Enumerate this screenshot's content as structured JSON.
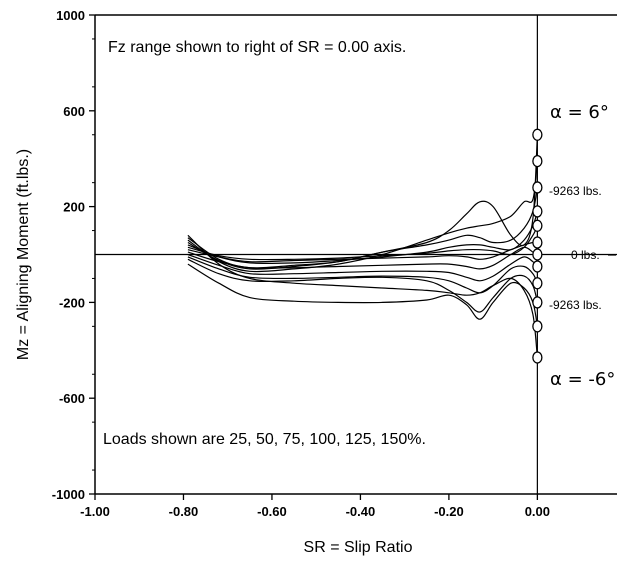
{
  "chart_data": {
    "type": "line",
    "title": "",
    "xlabel": "SR = Slip Ratio",
    "ylabel": "Mz = Aligning Moment (ft.lbs.)",
    "xlim": [
      -1.0,
      0.18
    ],
    "ylim": [
      -1000,
      1000
    ],
    "x_ticks": [
      -1.0,
      -0.8,
      -0.6,
      -0.4,
      -0.2,
      0.0
    ],
    "x_tick_labels": [
      "-1.00",
      "-0.80",
      "-0.60",
      "-0.40",
      "-0.20",
      "0.00"
    ],
    "y_ticks": [
      -1000,
      -600,
      -200,
      200,
      600,
      1000
    ],
    "y_tick_labels": [
      "-1000",
      "-600",
      "-200",
      "200",
      "600",
      "1000"
    ],
    "grid": false,
    "reference_lines": {
      "y": 0,
      "x": 0.0
    },
    "annotations": {
      "fz_range": "Fz range shown to right of SR = 0.00 axis.",
      "loads": "Loads shown are 25, 50, 75, 100, 125, 150%.",
      "alpha_pos": "α = 6°",
      "alpha_neg": "α = -6°",
      "load_pos": "-9263 lbs.",
      "load_zero": "0 lbs.",
      "load_neg": "-9263 lbs."
    },
    "markers_at_zero": [
      500,
      390,
      280,
      180,
      120,
      50,
      0,
      -50,
      -120,
      -200,
      -300,
      -430
    ],
    "series": [
      {
        "x": [
          -0.79,
          -0.72,
          -0.65,
          -0.55,
          -0.45,
          -0.35,
          -0.25,
          -0.2,
          -0.16,
          -0.13,
          -0.1,
          -0.06,
          -0.03,
          -0.01,
          0.0
        ],
        "values": [
          70,
          -20,
          -55,
          -45,
          -30,
          10,
          50,
          100,
          170,
          220,
          200,
          80,
          40,
          150,
          500
        ]
      },
      {
        "x": [
          -0.79,
          -0.72,
          -0.65,
          -0.55,
          -0.45,
          -0.35,
          -0.25,
          -0.2,
          -0.16,
          -0.13,
          -0.1,
          -0.06,
          -0.03,
          -0.01,
          0.0
        ],
        "values": [
          60,
          -30,
          -70,
          -60,
          -40,
          0,
          60,
          90,
          110,
          120,
          130,
          160,
          220,
          230,
          390
        ]
      },
      {
        "x": [
          -0.79,
          -0.72,
          -0.65,
          -0.55,
          -0.45,
          -0.35,
          -0.25,
          -0.2,
          -0.16,
          -0.13,
          -0.1,
          -0.06,
          -0.03,
          -0.01,
          0.0
        ],
        "values": [
          50,
          -25,
          -60,
          -50,
          -30,
          10,
          40,
          60,
          80,
          70,
          50,
          60,
          110,
          180,
          280
        ]
      },
      {
        "x": [
          -0.79,
          -0.72,
          -0.65,
          -0.55,
          -0.45,
          -0.35,
          -0.25,
          -0.2,
          -0.16,
          -0.13,
          -0.1,
          -0.06,
          -0.03,
          -0.01,
          0.0
        ],
        "values": [
          40,
          -10,
          -35,
          -35,
          -25,
          -10,
          10,
          30,
          40,
          40,
          30,
          20,
          60,
          120,
          180
        ]
      },
      {
        "x": [
          -0.79,
          -0.72,
          -0.65,
          -0.55,
          -0.45,
          -0.35,
          -0.25,
          -0.2,
          -0.16,
          -0.13,
          -0.1,
          -0.06,
          -0.03,
          -0.01,
          0.0
        ],
        "values": [
          30,
          -5,
          -20,
          -20,
          -15,
          -5,
          5,
          15,
          20,
          20,
          15,
          0,
          30,
          80,
          120
        ]
      },
      {
        "x": [
          -0.79,
          -0.72,
          -0.65,
          -0.55,
          -0.45,
          -0.35,
          -0.25,
          -0.2,
          -0.16,
          -0.13,
          -0.1,
          -0.06,
          -0.03,
          -0.01,
          0.0
        ],
        "values": [
          20,
          -10,
          -30,
          -25,
          -20,
          -15,
          -10,
          -5,
          -10,
          -20,
          -10,
          20,
          40,
          50,
          50
        ]
      },
      {
        "x": [
          -0.79,
          -0.72,
          -0.65,
          -0.55,
          -0.45,
          -0.35,
          -0.25,
          -0.2,
          -0.16,
          -0.13,
          -0.1,
          -0.06,
          -0.03,
          -0.01,
          0.0
        ],
        "values": [
          10,
          -30,
          -55,
          -55,
          -50,
          -45,
          -40,
          -40,
          -50,
          -60,
          -45,
          0,
          30,
          10,
          0
        ]
      },
      {
        "x": [
          -0.79,
          -0.72,
          -0.65,
          -0.55,
          -0.45,
          -0.35,
          -0.25,
          -0.2,
          -0.16,
          -0.13,
          -0.1,
          -0.06,
          -0.03,
          -0.01,
          0.0
        ],
        "values": [
          0,
          -45,
          -80,
          -80,
          -75,
          -70,
          -70,
          -75,
          -95,
          -110,
          -90,
          -40,
          -10,
          -30,
          -50
        ]
      },
      {
        "x": [
          -0.79,
          -0.72,
          -0.65,
          -0.55,
          -0.45,
          -0.35,
          -0.25,
          -0.2,
          -0.16,
          -0.13,
          -0.1,
          -0.06,
          -0.03,
          -0.01,
          0.0
        ],
        "values": [
          -10,
          -60,
          -95,
          -100,
          -95,
          -90,
          -95,
          -110,
          -140,
          -160,
          -130,
          -60,
          -50,
          -80,
          -120
        ]
      },
      {
        "x": [
          -0.79,
          -0.72,
          -0.65,
          -0.55,
          -0.45,
          -0.35,
          -0.25,
          -0.2,
          -0.16,
          -0.13,
          -0.1,
          -0.06,
          -0.03,
          -0.01,
          0.0
        ],
        "values": [
          -20,
          -80,
          -110,
          -110,
          -100,
          -95,
          -110,
          -150,
          -200,
          -240,
          -180,
          -100,
          -90,
          -130,
          -200
        ]
      },
      {
        "x": [
          -0.79,
          -0.72,
          -0.65,
          -0.55,
          -0.45,
          -0.35,
          -0.25,
          -0.2,
          -0.16,
          -0.13,
          -0.1,
          -0.06,
          -0.03,
          -0.01,
          0.0
        ],
        "values": [
          -40,
          -120,
          -180,
          -195,
          -200,
          -200,
          -190,
          -170,
          -210,
          -270,
          -200,
          -120,
          -140,
          -200,
          -300
        ]
      },
      {
        "x": [
          -0.79,
          -0.72,
          -0.65,
          -0.55,
          -0.45,
          -0.35,
          -0.25,
          -0.2,
          -0.16,
          -0.13,
          -0.1,
          -0.06,
          -0.03,
          -0.01,
          0.0
        ],
        "values": [
          80,
          -40,
          -100,
          -120,
          -130,
          -140,
          -150,
          -160,
          -170,
          -160,
          -130,
          -100,
          -150,
          -250,
          -430
        ]
      }
    ]
  }
}
